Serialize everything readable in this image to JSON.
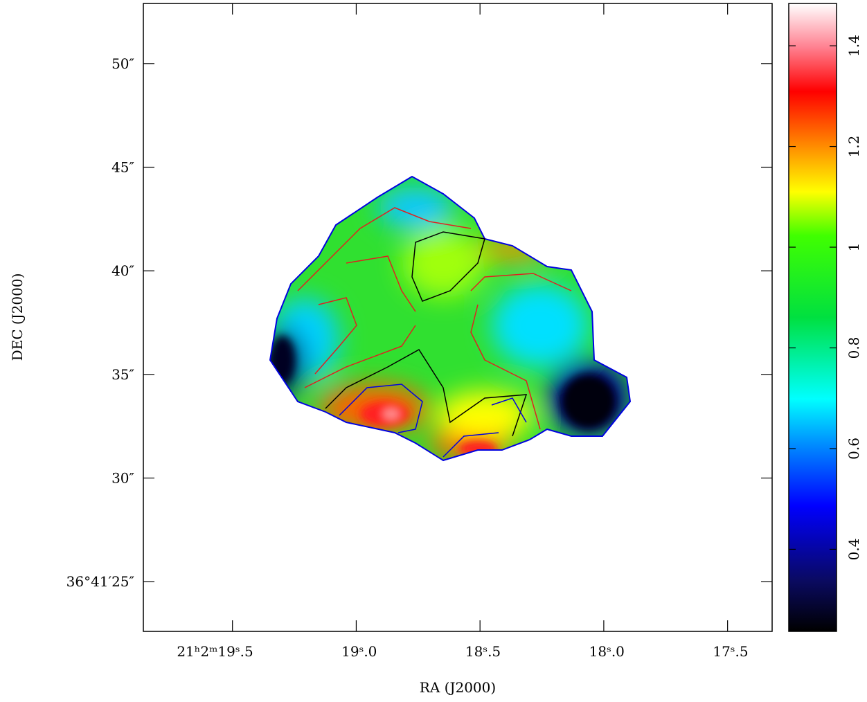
{
  "chart_data": {
    "type": "image",
    "xlabel": "RA (J2000)",
    "ylabel": "DEC (J2000)",
    "xlim": [
      19.86,
      17.32
    ],
    "xticks": [
      {
        "value": 19.5,
        "label": "21ʰ2ᵐ19ˢ.5"
      },
      {
        "value": 19.0,
        "label": "19ˢ.0"
      },
      {
        "value": 18.5,
        "label": "18ˢ.5"
      },
      {
        "value": 18.0,
        "label": "18ˢ.0"
      },
      {
        "value": 17.5,
        "label": "17ˢ.5"
      }
    ],
    "ylim": [
      22.6,
      52.9
    ],
    "yticks": [
      {
        "value": 50,
        "label": "50″"
      },
      {
        "value": 45,
        "label": "45″"
      },
      {
        "value": 40,
        "label": "40″"
      },
      {
        "value": 35,
        "label": "35″"
      },
      {
        "value": 30,
        "label": "30″"
      },
      {
        "value": 25,
        "label": "36°41′25″"
      }
    ],
    "colorbar": {
      "lim": [
        0.237,
        1.484
      ],
      "ticks": [
        0.4,
        0.6,
        0.8,
        1,
        1.2,
        1.4
      ]
    }
  }
}
